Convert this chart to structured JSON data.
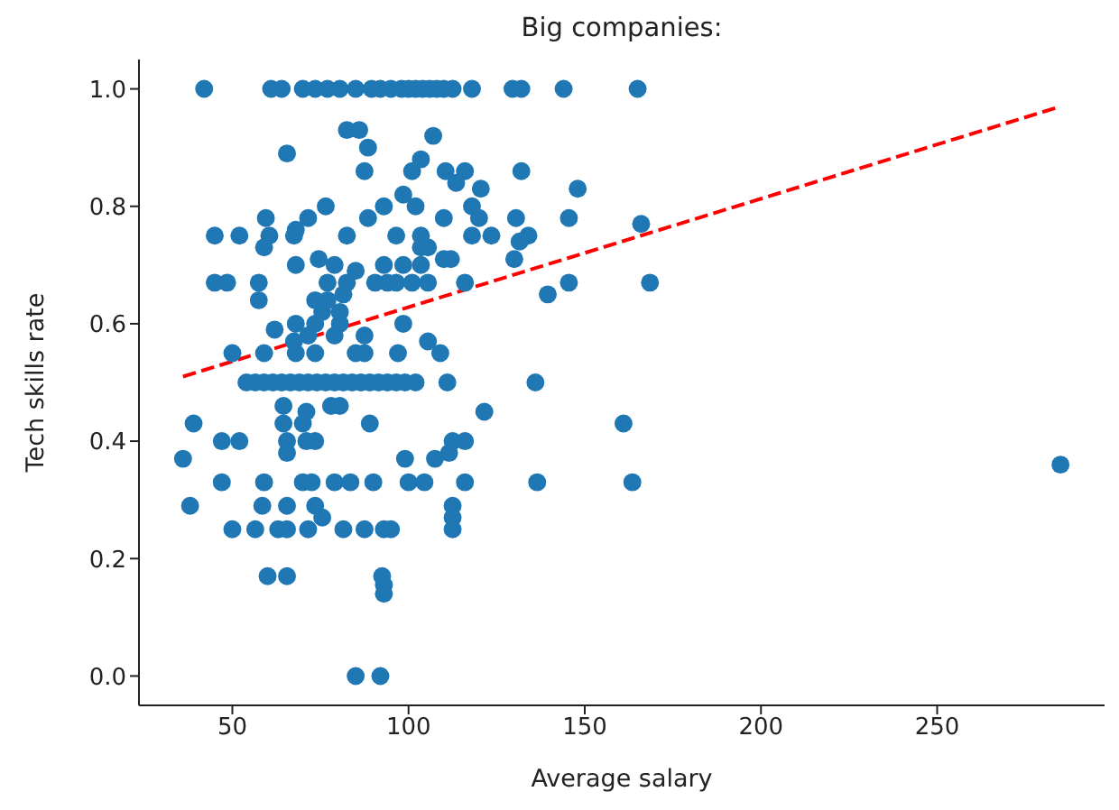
{
  "chart_data": {
    "type": "scatter",
    "title": "Big companies:",
    "xlabel": "Average salary",
    "ylabel": "Tech skills rate",
    "xlim": [
      23.5,
      297.5
    ],
    "xticks": [
      50,
      100,
      150,
      200,
      250
    ],
    "ylim": [
      -0.05,
      1.05
    ],
    "yticks": [
      {
        "value": 0,
        "label": "0.0"
      },
      {
        "value": 0.2,
        "label": "0.2"
      },
      {
        "value": 0.4,
        "label": "0.4"
      },
      {
        "value": 0.6,
        "label": "0.6"
      },
      {
        "value": 0.8,
        "label": "0.8"
      },
      {
        "value": 1,
        "label": "1.0"
      }
    ],
    "series": [
      {
        "color": "#1f77b4",
        "marker": "circle",
        "x": [
          42,
          61,
          64,
          70,
          73.5,
          77,
          80.5,
          85,
          89.5,
          92,
          95,
          98,
          100,
          102,
          104,
          106,
          108,
          110,
          112.5,
          118,
          129.5,
          132,
          144,
          165,
          82.5,
          86,
          107,
          65.5,
          88.5,
          87.5,
          101,
          103.5,
          110.5,
          116,
          113.5,
          120.5,
          132,
          148,
          59.5,
          76.5,
          68,
          71.5,
          88.5,
          93,
          98.5,
          102,
          110,
          118,
          120,
          130.5,
          145.5,
          166,
          45,
          52,
          60.5,
          67.5,
          82.5,
          96.5,
          103.5,
          118,
          123.5,
          134,
          59,
          131.5,
          130,
          110,
          112,
          103.5,
          105.5,
          68,
          74.5,
          79,
          85,
          93,
          98.5,
          103.5,
          45,
          48.5,
          57.5,
          77,
          82.5,
          90.5,
          94,
          96.5,
          101,
          105.5,
          116,
          145.5,
          168.5,
          139.5,
          57.5,
          73.5,
          77,
          81.5,
          75.5,
          80.5,
          68,
          73.5,
          80.5,
          98.5,
          87.5,
          62,
          67.5,
          71.5,
          79,
          105.5,
          109,
          50,
          59,
          68,
          73.5,
          85,
          87.5,
          97,
          54,
          56.5,
          59,
          61.5,
          64,
          66.5,
          69,
          71.5,
          74,
          76.5,
          79,
          81.5,
          84,
          86.5,
          89,
          91.5,
          94,
          96.5,
          99,
          102,
          111,
          136,
          64.5,
          71,
          78,
          80.5,
          121.5,
          64.5,
          70,
          39,
          89,
          65.5,
          71,
          47,
          52,
          65.5,
          73.5,
          112.5,
          116,
          111.5,
          36,
          99,
          107.5,
          161,
          47,
          59,
          70,
          72.5,
          79,
          83.5,
          90,
          100,
          104.5,
          116,
          136.5,
          163.5,
          38,
          58.5,
          65.5,
          73.5,
          75.5,
          112.5,
          112.5,
          112.5,
          50,
          56.5,
          63,
          65.5,
          71.5,
          81.5,
          87.5,
          93,
          95,
          60,
          65.5,
          92.5,
          93,
          93,
          85,
          92,
          285
        ],
        "values": [
          1,
          1,
          1,
          1,
          1,
          1,
          1,
          1,
          1,
          1,
          1,
          1,
          1,
          1,
          1,
          1,
          1,
          1,
          1,
          1,
          1,
          1,
          1,
          1,
          0.93,
          0.93,
          0.92,
          0.89,
          0.9,
          0.86,
          0.86,
          0.88,
          0.86,
          0.86,
          0.84,
          0.83,
          0.86,
          0.83,
          0.78,
          0.8,
          0.76,
          0.78,
          0.78,
          0.8,
          0.82,
          0.8,
          0.78,
          0.8,
          0.78,
          0.78,
          0.78,
          0.77,
          0.75,
          0.75,
          0.75,
          0.75,
          0.75,
          0.75,
          0.75,
          0.75,
          0.75,
          0.75,
          0.73,
          0.74,
          0.71,
          0.71,
          0.71,
          0.73,
          0.73,
          0.7,
          0.71,
          0.7,
          0.69,
          0.7,
          0.7,
          0.7,
          0.67,
          0.67,
          0.67,
          0.67,
          0.67,
          0.67,
          0.67,
          0.67,
          0.67,
          0.67,
          0.67,
          0.67,
          0.67,
          0.65,
          0.64,
          0.64,
          0.64,
          0.65,
          0.62,
          0.62,
          0.6,
          0.6,
          0.6,
          0.6,
          0.58,
          0.59,
          0.57,
          0.58,
          0.58,
          0.57,
          0.55,
          0.55,
          0.55,
          0.55,
          0.55,
          0.55,
          0.55,
          0.55,
          0.5,
          0.5,
          0.5,
          0.5,
          0.5,
          0.5,
          0.5,
          0.5,
          0.5,
          0.5,
          0.5,
          0.5,
          0.5,
          0.5,
          0.5,
          0.5,
          0.5,
          0.5,
          0.5,
          0.5,
          0.5,
          0.5,
          0.46,
          0.45,
          0.46,
          0.46,
          0.45,
          0.43,
          0.43,
          0.43,
          0.43,
          0.4,
          0.4,
          0.4,
          0.4,
          0.38,
          0.4,
          0.4,
          0.4,
          0.38,
          0.37,
          0.37,
          0.37,
          0.43,
          0.33,
          0.33,
          0.33,
          0.33,
          0.33,
          0.33,
          0.33,
          0.33,
          0.33,
          0.33,
          0.33,
          0.33,
          0.29,
          0.29,
          0.29,
          0.29,
          0.27,
          0.29,
          0.27,
          0.25,
          0.25,
          0.25,
          0.25,
          0.25,
          0.25,
          0.25,
          0.25,
          0.25,
          0.25,
          0.17,
          0.17,
          0.17,
          0.155,
          0.14,
          0,
          0,
          0.36
        ]
      },
      {
        "type": "line",
        "color": "#ff0000",
        "line_style": "dashed",
        "x": [
          36,
          285
        ],
        "values": [
          0.51,
          0.97
        ]
      }
    ]
  }
}
